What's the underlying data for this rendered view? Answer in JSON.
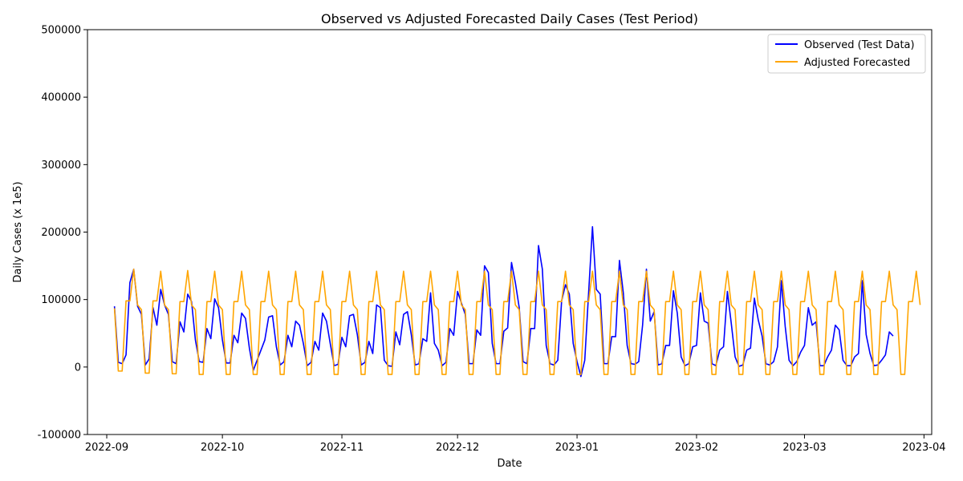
{
  "chart_data": {
    "type": "line",
    "title": "Observed vs Adjusted Forecasted Daily Cases (Test Period)",
    "xlabel": "Date",
    "ylabel": "Daily Cases (x 1e5)",
    "ylim": [
      -100000,
      500000
    ],
    "xlim": [
      "2022-08-27",
      "2023-04-03"
    ],
    "yticks": [
      -100000,
      0,
      100000,
      200000,
      300000,
      400000,
      500000
    ],
    "xticks": [
      "2022-09-01",
      "2022-10-01",
      "2022-11-01",
      "2022-12-01",
      "2023-01-01",
      "2023-02-01",
      "2023-03-01",
      "2023-04-01"
    ],
    "xtick_labels": [
      "2022-09",
      "2022-10",
      "2022-11",
      "2022-12",
      "2023-01",
      "2023-02",
      "2023-03",
      "2023-04"
    ],
    "grid": false,
    "legend_position": "top-right",
    "x_start": "2022-09-03",
    "series": [
      {
        "name": "Observed (Test Data)",
        "color": "#0000ff",
        "values": [
          90000,
          7000,
          5000,
          18000,
          125000,
          145000,
          90000,
          78000,
          3000,
          12000,
          88000,
          62000,
          115000,
          92000,
          78000,
          8000,
          5000,
          67000,
          52000,
          108000,
          97000,
          40000,
          8000,
          7000,
          57000,
          42000,
          101000,
          88000,
          40000,
          6000,
          6000,
          47000,
          36000,
          80000,
          72000,
          28000,
          -5000,
          10000,
          25000,
          40000,
          74000,
          76000,
          30000,
          3000,
          8000,
          47000,
          30000,
          68000,
          62000,
          35000,
          2000,
          7000,
          38000,
          25000,
          80000,
          68000,
          34000,
          2000,
          4000,
          44000,
          30000,
          76000,
          78000,
          48000,
          3000,
          7000,
          38000,
          20000,
          92000,
          88000,
          10000,
          2000,
          1000,
          52000,
          33000,
          78000,
          82000,
          48000,
          3000,
          5000,
          42000,
          38000,
          110000,
          35000,
          25000,
          2000,
          7000,
          57000,
          47000,
          112000,
          95000,
          78000,
          5000,
          5000,
          55000,
          47000,
          150000,
          140000,
          35000,
          5000,
          5000,
          53000,
          58000,
          155000,
          125000,
          88000,
          8000,
          5000,
          57000,
          57000,
          180000,
          145000,
          32000,
          5000,
          3000,
          10000,
          98000,
          122000,
          108000,
          35000,
          8000,
          -14000,
          10000,
          110000,
          208000,
          115000,
          108000,
          5000,
          5000,
          45000,
          45000,
          158000,
          110000,
          32000,
          5000,
          4000,
          8000,
          62000,
          145000,
          68000,
          82000,
          3000,
          5000,
          32000,
          32000,
          113000,
          80000,
          15000,
          2000,
          5000,
          30000,
          32000,
          110000,
          68000,
          65000,
          5000,
          2000,
          25000,
          30000,
          112000,
          65000,
          15000,
          1000,
          3000,
          25000,
          28000,
          102000,
          70000,
          46000,
          5000,
          3000,
          8000,
          30000,
          128000,
          60000,
          10000,
          2000,
          8000,
          22000,
          32000,
          88000,
          62000,
          67000,
          2000,
          2000,
          15000,
          25000,
          62000,
          55000,
          10000,
          2000,
          2000,
          15000,
          20000,
          128000,
          48000,
          20000,
          2000,
          3000,
          10000,
          18000,
          52000,
          46000
        ]
      },
      {
        "name": "Adjusted Forecasted",
        "color": "#ffa500",
        "values": [
          87000,
          -6000,
          -6000,
          98000,
          98000,
          145000,
          92000,
          85000,
          -9000,
          -9000,
          98000,
          98000,
          142000,
          92000,
          85000,
          -10000,
          -10000,
          97000,
          97000,
          143000,
          92000,
          85000,
          -11000,
          -11000,
          97000,
          97000,
          142000,
          92000,
          85000,
          -11000,
          -11000,
          97000,
          97000,
          142000,
          92000,
          85000,
          -11000,
          -11000,
          97000,
          97000,
          142000,
          92000,
          85000,
          -11000,
          -11000,
          97000,
          97000,
          142000,
          92000,
          85000,
          -11000,
          -11000,
          97000,
          97000,
          142000,
          92000,
          85000,
          -11000,
          -11000,
          97000,
          97000,
          142000,
          92000,
          85000,
          -11000,
          -11000,
          97000,
          97000,
          142000,
          92000,
          85000,
          -11000,
          -11000,
          97000,
          97000,
          142000,
          92000,
          85000,
          -11000,
          -11000,
          97000,
          97000,
          142000,
          92000,
          85000,
          -11000,
          -11000,
          97000,
          97000,
          142000,
          92000,
          85000,
          -11000,
          -11000,
          97000,
          97000,
          142000,
          92000,
          85000,
          -11000,
          -11000,
          97000,
          97000,
          142000,
          92000,
          85000,
          -11000,
          -11000,
          97000,
          97000,
          142000,
          92000,
          85000,
          -11000,
          -11000,
          97000,
          97000,
          142000,
          92000,
          85000,
          -11000,
          -11000,
          97000,
          97000,
          142000,
          92000,
          85000,
          -11000,
          -11000,
          97000,
          97000,
          142000,
          92000,
          85000,
          -11000,
          -11000,
          97000,
          97000,
          142000,
          92000,
          85000,
          -11000,
          -11000,
          97000,
          97000,
          142000,
          92000,
          85000,
          -11000,
          -11000,
          97000,
          97000,
          142000,
          92000,
          85000,
          -11000,
          -11000,
          97000,
          97000,
          142000,
          92000,
          85000,
          -11000,
          -11000,
          97000,
          97000,
          142000,
          92000,
          85000,
          -11000,
          -11000,
          97000,
          97000,
          142000,
          92000,
          85000,
          -11000,
          -11000,
          97000,
          97000,
          142000,
          92000,
          85000,
          -11000,
          -11000,
          97000,
          97000,
          142000,
          92000,
          85000,
          -11000,
          -11000,
          97000,
          97000,
          142000,
          92000,
          85000,
          -11000,
          -11000,
          97000,
          97000,
          142000,
          92000,
          85000,
          -11000,
          -11000,
          97000,
          97000,
          142000,
          92000
        ]
      }
    ]
  }
}
